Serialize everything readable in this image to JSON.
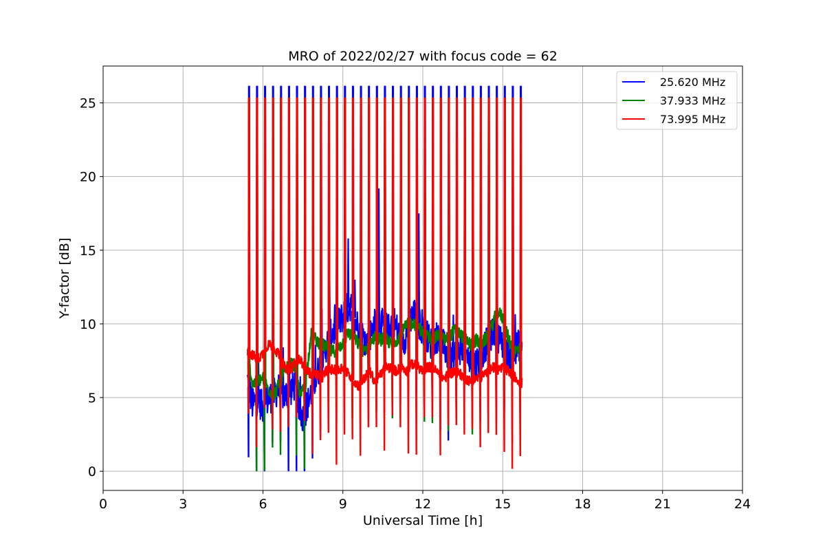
{
  "chart_data": {
    "type": "line",
    "title": "MRO of 2022/02/27 with focus code = 62",
    "xlabel": "Universal Time [h]",
    "ylabel": "Y-factor [dB]",
    "xlim": [
      0,
      24
    ],
    "ylim": [
      -1.3,
      27.5
    ],
    "xticks": [
      0,
      3,
      6,
      9,
      12,
      15,
      18,
      21,
      24
    ],
    "yticks": [
      0,
      5,
      10,
      15,
      20,
      25
    ],
    "grid": true,
    "legend_position": "top-right",
    "data_range_h": [
      5.42,
      15.72
    ],
    "calibration_spikes": {
      "period_h": 0.3,
      "first_h": 5.47,
      "count": 35,
      "peak_values": {
        "25.620 MHz": 26.1,
        "37.933 MHz": 25.3,
        "73.995 MHz": 25.3
      }
    },
    "series": [
      {
        "name": "25.620 MHz",
        "color": "#0000ff",
        "points": [
          [
            5.42,
            6.2
          ],
          [
            5.6,
            4.5
          ],
          [
            5.8,
            4.9
          ],
          [
            6.0,
            4.3
          ],
          [
            6.2,
            4.9
          ],
          [
            6.4,
            5.2
          ],
          [
            6.6,
            5.6
          ],
          [
            6.8,
            5.1
          ],
          [
            7.0,
            5.4
          ],
          [
            7.2,
            5.9
          ],
          [
            7.4,
            4.0
          ],
          [
            7.5,
            3.6
          ],
          [
            7.7,
            4.7
          ],
          [
            7.9,
            5.9
          ],
          [
            8.1,
            6.9
          ],
          [
            8.3,
            8.1
          ],
          [
            8.5,
            9.1
          ],
          [
            8.7,
            9.6
          ],
          [
            8.9,
            10.2
          ],
          [
            9.1,
            10.9
          ],
          [
            9.3,
            11.3
          ],
          [
            9.5,
            10.1
          ],
          [
            9.7,
            9.4
          ],
          [
            9.9,
            8.6
          ],
          [
            10.1,
            9.6
          ],
          [
            10.3,
            10.4
          ],
          [
            10.5,
            9.9
          ],
          [
            10.7,
            9.6
          ],
          [
            10.9,
            10.3
          ],
          [
            11.1,
            9.3
          ],
          [
            11.3,
            8.9
          ],
          [
            11.5,
            10.1
          ],
          [
            11.7,
            10.6
          ],
          [
            11.9,
            9.9
          ],
          [
            12.1,
            9.4
          ],
          [
            12.3,
            8.7
          ],
          [
            12.5,
            9.1
          ],
          [
            12.7,
            8.9
          ],
          [
            12.9,
            8.0
          ],
          [
            13.1,
            7.6
          ],
          [
            13.3,
            8.1
          ],
          [
            13.5,
            8.5
          ],
          [
            13.7,
            7.7
          ],
          [
            13.9,
            7.2
          ],
          [
            14.1,
            7.6
          ],
          [
            14.3,
            8.3
          ],
          [
            14.5,
            9.1
          ],
          [
            14.7,
            9.6
          ],
          [
            14.9,
            8.9
          ],
          [
            15.1,
            8.3
          ],
          [
            15.3,
            7.7
          ],
          [
            15.5,
            8.4
          ],
          [
            15.72,
            8.7
          ]
        ]
      },
      {
        "name": "37.933 MHz",
        "color": "#008000",
        "points": [
          [
            5.42,
            8.0
          ],
          [
            5.6,
            5.9
          ],
          [
            5.8,
            6.1
          ],
          [
            6.0,
            6.3
          ],
          [
            6.2,
            5.6
          ],
          [
            6.4,
            5.1
          ],
          [
            6.6,
            5.9
          ],
          [
            6.8,
            6.7
          ],
          [
            7.0,
            7.3
          ],
          [
            7.2,
            7.1
          ],
          [
            7.4,
            5.1
          ],
          [
            7.6,
            5.9
          ],
          [
            7.8,
            9.3
          ],
          [
            8.0,
            8.9
          ],
          [
            8.2,
            8.6
          ],
          [
            8.4,
            8.4
          ],
          [
            8.6,
            8.1
          ],
          [
            8.8,
            8.3
          ],
          [
            9.0,
            8.7
          ],
          [
            9.2,
            9.4
          ],
          [
            9.4,
            9.1
          ],
          [
            9.6,
            8.6
          ],
          [
            9.8,
            8.1
          ],
          [
            10.0,
            8.6
          ],
          [
            10.2,
            9.1
          ],
          [
            10.4,
            8.9
          ],
          [
            10.6,
            9.1
          ],
          [
            10.8,
            8.6
          ],
          [
            11.0,
            8.9
          ],
          [
            11.2,
            9.4
          ],
          [
            11.4,
            9.9
          ],
          [
            11.6,
            10.1
          ],
          [
            11.8,
            9.9
          ],
          [
            12.0,
            9.4
          ],
          [
            12.2,
            9.1
          ],
          [
            12.4,
            8.9
          ],
          [
            12.6,
            9.3
          ],
          [
            12.8,
            8.9
          ],
          [
            13.0,
            9.1
          ],
          [
            13.2,
            9.6
          ],
          [
            13.4,
            9.3
          ],
          [
            13.6,
            8.9
          ],
          [
            13.8,
            8.6
          ],
          [
            14.0,
            8.9
          ],
          [
            14.2,
            8.6
          ],
          [
            14.4,
            9.1
          ],
          [
            14.6,
            9.9
          ],
          [
            14.8,
            10.9
          ],
          [
            15.0,
            10.4
          ],
          [
            15.2,
            9.1
          ],
          [
            15.4,
            8.1
          ],
          [
            15.6,
            8.3
          ],
          [
            15.72,
            8.4
          ]
        ]
      },
      {
        "name": "73.995 MHz",
        "color": "#ff0000",
        "points": [
          [
            5.42,
            8.1
          ],
          [
            5.6,
            7.9
          ],
          [
            5.8,
            7.6
          ],
          [
            6.0,
            8.0
          ],
          [
            6.2,
            8.6
          ],
          [
            6.4,
            8.4
          ],
          [
            6.6,
            7.9
          ],
          [
            6.8,
            7.1
          ],
          [
            7.0,
            6.8
          ],
          [
            7.2,
            7.4
          ],
          [
            7.4,
            7.6
          ],
          [
            7.6,
            6.9
          ],
          [
            7.8,
            6.6
          ],
          [
            8.0,
            6.6
          ],
          [
            8.2,
            6.3
          ],
          [
            8.4,
            6.9
          ],
          [
            8.6,
            6.9
          ],
          [
            8.8,
            6.8
          ],
          [
            9.0,
            7.1
          ],
          [
            9.2,
            6.6
          ],
          [
            9.4,
            6.1
          ],
          [
            9.6,
            5.8
          ],
          [
            9.8,
            6.3
          ],
          [
            10.0,
            6.8
          ],
          [
            10.2,
            6.1
          ],
          [
            10.4,
            6.5
          ],
          [
            10.6,
            7.1
          ],
          [
            10.8,
            7.0
          ],
          [
            11.0,
            6.8
          ],
          [
            11.2,
            7.1
          ],
          [
            11.4,
            6.8
          ],
          [
            11.6,
            7.3
          ],
          [
            11.8,
            7.1
          ],
          [
            12.0,
            6.8
          ],
          [
            12.2,
            7.1
          ],
          [
            12.4,
            7.0
          ],
          [
            12.6,
            6.6
          ],
          [
            12.8,
            6.3
          ],
          [
            13.0,
            6.6
          ],
          [
            13.2,
            6.8
          ],
          [
            13.4,
            6.6
          ],
          [
            13.6,
            6.3
          ],
          [
            13.8,
            6.1
          ],
          [
            14.0,
            6.3
          ],
          [
            14.2,
            6.4
          ],
          [
            14.4,
            6.7
          ],
          [
            14.6,
            7.1
          ],
          [
            14.8,
            6.9
          ],
          [
            15.0,
            7.0
          ],
          [
            15.2,
            6.8
          ],
          [
            15.4,
            6.5
          ],
          [
            15.6,
            6.1
          ],
          [
            15.72,
            6.0
          ]
        ]
      }
    ]
  }
}
